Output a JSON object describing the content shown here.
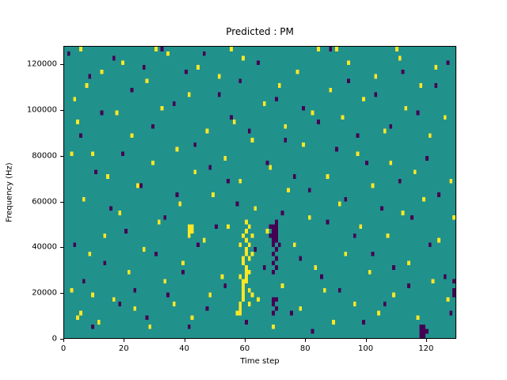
{
  "chart_data": {
    "type": "heatmap",
    "title": "Predicted : PM",
    "xlabel": "Time step",
    "ylabel": "Frequency (Hz)",
    "x_range": [
      0,
      130
    ],
    "y_range": [
      0,
      128000
    ],
    "x_ticks": [
      0,
      20,
      40,
      60,
      80,
      100,
      120
    ],
    "y_ticks": [
      0,
      20000,
      40000,
      60000,
      80000,
      100000,
      120000
    ],
    "grid_cols": 130,
    "grid_rows": 64,
    "row_height_hz": 2000,
    "grid": false,
    "legend": null,
    "colors": {
      "background_value_color": "#21918c",
      "high_value_color": "#fde725",
      "low_value_color": "#440154",
      "axis_color": "#000000",
      "figure_background": "#ffffff"
    },
    "cells_high": [
      [
        2,
        10
      ],
      [
        2,
        40
      ],
      [
        3,
        52
      ],
      [
        4,
        47
      ],
      [
        4,
        4
      ],
      [
        5,
        5
      ],
      [
        5,
        63
      ],
      [
        6,
        30
      ],
      [
        7,
        55
      ],
      [
        8,
        18
      ],
      [
        9,
        40
      ],
      [
        9,
        9
      ],
      [
        11,
        3
      ],
      [
        12,
        58
      ],
      [
        13,
        22
      ],
      [
        14,
        35
      ],
      [
        16,
        8
      ],
      [
        17,
        49
      ],
      [
        18,
        27
      ],
      [
        19,
        60
      ],
      [
        21,
        14
      ],
      [
        22,
        44
      ],
      [
        23,
        6
      ],
      [
        24,
        33
      ],
      [
        26,
        19
      ],
      [
        27,
        56
      ],
      [
        28,
        2
      ],
      [
        29,
        38
      ],
      [
        30,
        63
      ],
      [
        31,
        25
      ],
      [
        32,
        50
      ],
      [
        33,
        12
      ],
      [
        34,
        62
      ],
      [
        36,
        7
      ],
      [
        37,
        41
      ],
      [
        38,
        29
      ],
      [
        39,
        16
      ],
      [
        41,
        53
      ],
      [
        42,
        4
      ],
      [
        43,
        36
      ],
      [
        44,
        59
      ],
      [
        46,
        21
      ],
      [
        47,
        45
      ],
      [
        48,
        9
      ],
      [
        49,
        31
      ],
      [
        51,
        57
      ],
      [
        52,
        13
      ],
      [
        53,
        39
      ],
      [
        54,
        24
      ],
      [
        55,
        63
      ],
      [
        56,
        47
      ],
      [
        57,
        5
      ],
      [
        58,
        34
      ],
      [
        59,
        61
      ],
      [
        61,
        17
      ],
      [
        62,
        43
      ],
      [
        63,
        28
      ],
      [
        64,
        8
      ],
      [
        66,
        51
      ],
      [
        67,
        23
      ],
      [
        68,
        37
      ],
      [
        69,
        2
      ],
      [
        71,
        55
      ],
      [
        72,
        11
      ],
      [
        73,
        46
      ],
      [
        74,
        32
      ],
      [
        76,
        20
      ],
      [
        77,
        58
      ],
      [
        78,
        6
      ],
      [
        79,
        42
      ],
      [
        81,
        26
      ],
      [
        82,
        49
      ],
      [
        83,
        15
      ],
      [
        84,
        63
      ],
      [
        86,
        10
      ],
      [
        87,
        35
      ],
      [
        88,
        54
      ],
      [
        89,
        3
      ],
      [
        90,
        63
      ],
      [
        91,
        29
      ],
      [
        92,
        48
      ],
      [
        93,
        18
      ],
      [
        94,
        60
      ],
      [
        96,
        7
      ],
      [
        97,
        40
      ],
      [
        98,
        24
      ],
      [
        99,
        52
      ],
      [
        101,
        14
      ],
      [
        102,
        33
      ],
      [
        103,
        57
      ],
      [
        104,
        5
      ],
      [
        106,
        45
      ],
      [
        107,
        22
      ],
      [
        108,
        38
      ],
      [
        109,
        9
      ],
      [
        110,
        63
      ],
      [
        111,
        61
      ],
      [
        112,
        27
      ],
      [
        113,
        50
      ],
      [
        114,
        16
      ],
      [
        116,
        36
      ],
      [
        117,
        4
      ],
      [
        118,
        55
      ],
      [
        119,
        30
      ],
      [
        121,
        44
      ],
      [
        122,
        12
      ],
      [
        123,
        59
      ],
      [
        124,
        21
      ],
      [
        126,
        48
      ],
      [
        127,
        8
      ],
      [
        128,
        34
      ],
      [
        129,
        26
      ],
      [
        58,
        5
      ],
      [
        58,
        6
      ],
      [
        58,
        7
      ],
      [
        58,
        13
      ],
      [
        58,
        20
      ],
      [
        59,
        8
      ],
      [
        59,
        9
      ],
      [
        59,
        10
      ],
      [
        59,
        11
      ],
      [
        59,
        12
      ],
      [
        59,
        16
      ],
      [
        59,
        17
      ],
      [
        59,
        22
      ],
      [
        60,
        12
      ],
      [
        60,
        13
      ],
      [
        60,
        14
      ],
      [
        60,
        15
      ],
      [
        60,
        18
      ],
      [
        60,
        19
      ],
      [
        60,
        21
      ],
      [
        60,
        23
      ],
      [
        60,
        25
      ],
      [
        61,
        7
      ],
      [
        61,
        10
      ],
      [
        61,
        14
      ],
      [
        61,
        20
      ],
      [
        61,
        24
      ],
      [
        62,
        9
      ],
      [
        62,
        18
      ],
      [
        62,
        22
      ],
      [
        41,
        22
      ],
      [
        41,
        23
      ],
      [
        41,
        24
      ],
      [
        42,
        23
      ],
      [
        42,
        24
      ]
    ],
    "cells_low": [
      [
        1,
        62
      ],
      [
        3,
        20
      ],
      [
        5,
        44
      ],
      [
        6,
        12
      ],
      [
        8,
        57
      ],
      [
        9,
        2
      ],
      [
        10,
        36
      ],
      [
        12,
        49
      ],
      [
        13,
        16
      ],
      [
        15,
        28
      ],
      [
        16,
        61
      ],
      [
        18,
        7
      ],
      [
        19,
        40
      ],
      [
        20,
        23
      ],
      [
        22,
        54
      ],
      [
        23,
        10
      ],
      [
        25,
        33
      ],
      [
        26,
        59
      ],
      [
        27,
        4
      ],
      [
        29,
        46
      ],
      [
        30,
        18
      ],
      [
        32,
        63
      ],
      [
        33,
        26
      ],
      [
        34,
        9
      ],
      [
        36,
        51
      ],
      [
        37,
        31
      ],
      [
        39,
        14
      ],
      [
        40,
        58
      ],
      [
        41,
        2
      ],
      [
        43,
        42
      ],
      [
        44,
        20
      ],
      [
        46,
        62
      ],
      [
        47,
        6
      ],
      [
        48,
        37
      ],
      [
        50,
        24
      ],
      [
        51,
        53
      ],
      [
        53,
        11
      ],
      [
        54,
        34
      ],
      [
        55,
        48
      ],
      [
        57,
        29
      ],
      [
        58,
        56
      ],
      [
        60,
        3
      ],
      [
        61,
        45
      ],
      [
        63,
        19
      ],
      [
        64,
        60
      ],
      [
        66,
        15
      ],
      [
        67,
        38
      ],
      [
        69,
        8
      ],
      [
        70,
        52
      ],
      [
        72,
        27
      ],
      [
        73,
        43
      ],
      [
        75,
        5
      ],
      [
        76,
        35
      ],
      [
        78,
        17
      ],
      [
        79,
        50
      ],
      [
        81,
        32
      ],
      [
        82,
        1
      ],
      [
        84,
        47
      ],
      [
        85,
        13
      ],
      [
        87,
        25
      ],
      [
        88,
        63
      ],
      [
        90,
        41
      ],
      [
        91,
        10
      ],
      [
        93,
        30
      ],
      [
        94,
        56
      ],
      [
        96,
        22
      ],
      [
        97,
        44
      ],
      [
        99,
        3
      ],
      [
        100,
        38
      ],
      [
        102,
        18
      ],
      [
        103,
        53
      ],
      [
        105,
        28
      ],
      [
        106,
        7
      ],
      [
        108,
        46
      ],
      [
        109,
        15
      ],
      [
        111,
        34
      ],
      [
        112,
        58
      ],
      [
        114,
        11
      ],
      [
        115,
        26
      ],
      [
        117,
        49
      ],
      [
        118,
        2
      ],
      [
        120,
        39
      ],
      [
        121,
        20
      ],
      [
        123,
        55
      ],
      [
        124,
        31
      ],
      [
        126,
        13
      ],
      [
        127,
        60
      ],
      [
        128,
        5
      ],
      [
        129,
        12
      ],
      [
        129,
        9
      ],
      [
        129,
        10
      ],
      [
        68,
        22
      ],
      [
        68,
        24
      ],
      [
        69,
        5
      ],
      [
        69,
        7
      ],
      [
        69,
        14
      ],
      [
        69,
        16
      ],
      [
        69,
        18
      ],
      [
        69,
        20
      ],
      [
        69,
        21
      ],
      [
        69,
        22
      ],
      [
        69,
        23
      ],
      [
        69,
        24
      ],
      [
        70,
        6
      ],
      [
        70,
        8
      ],
      [
        70,
        15
      ],
      [
        70,
        17
      ],
      [
        70,
        19
      ],
      [
        70,
        21
      ],
      [
        70,
        22
      ],
      [
        70,
        23
      ],
      [
        70,
        24
      ],
      [
        70,
        25
      ],
      [
        71,
        20
      ],
      [
        118,
        0
      ],
      [
        118,
        1
      ],
      [
        119,
        0
      ],
      [
        119,
        1
      ],
      [
        119,
        2
      ],
      [
        120,
        1
      ]
    ]
  }
}
